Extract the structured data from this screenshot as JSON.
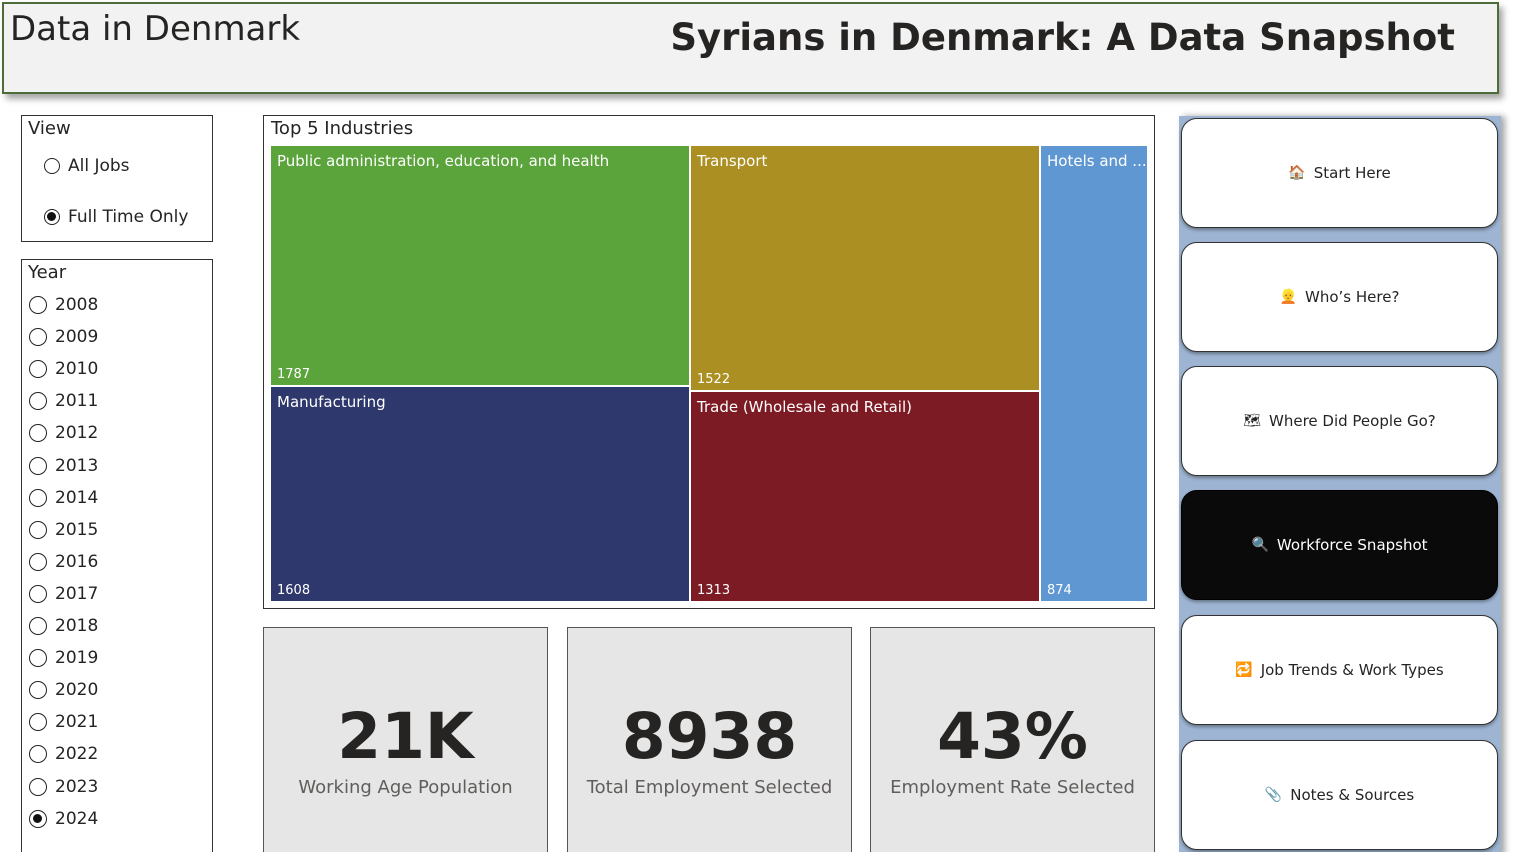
{
  "header": {
    "brand": "Data in Denmark",
    "title": "Syrians in Denmark: A Data Snapshot"
  },
  "view_slicer": {
    "title": "View",
    "options": [
      {
        "label": "All Jobs",
        "selected": false
      },
      {
        "label": "Full Time Only",
        "selected": true
      }
    ]
  },
  "year_slicer": {
    "title": "Year",
    "options": [
      {
        "label": "2008",
        "selected": false
      },
      {
        "label": "2009",
        "selected": false
      },
      {
        "label": "2010",
        "selected": false
      },
      {
        "label": "2011",
        "selected": false
      },
      {
        "label": "2012",
        "selected": false
      },
      {
        "label": "2013",
        "selected": false
      },
      {
        "label": "2014",
        "selected": false
      },
      {
        "label": "2015",
        "selected": false
      },
      {
        "label": "2016",
        "selected": false
      },
      {
        "label": "2017",
        "selected": false
      },
      {
        "label": "2018",
        "selected": false
      },
      {
        "label": "2019",
        "selected": false
      },
      {
        "label": "2020",
        "selected": false
      },
      {
        "label": "2021",
        "selected": false
      },
      {
        "label": "2022",
        "selected": false
      },
      {
        "label": "2023",
        "selected": false
      },
      {
        "label": "2024",
        "selected": true
      }
    ]
  },
  "treemap": {
    "title": "Top 5 Industries",
    "tiles": [
      {
        "label": "Public administration, education, and health",
        "value": "1787",
        "color": "#5ba33b"
      },
      {
        "label": "Manufacturing",
        "value": "1608",
        "color": "#2e386c"
      },
      {
        "label": "Transport",
        "value": "1522",
        "color": "#ac8f22"
      },
      {
        "label": "Trade (Wholesale and Retail)",
        "value": "1313",
        "color": "#7d1b24"
      },
      {
        "label": "Hotels and ...",
        "value": "874",
        "color": "#5e97d2"
      }
    ]
  },
  "cards": [
    {
      "value": "21K",
      "label": "Working Age Population"
    },
    {
      "value": "8938",
      "label": "Total Employment Selected"
    },
    {
      "value": "43%",
      "label": "Employment Rate Selected"
    }
  ],
  "nav": {
    "buttons": [
      {
        "icon": "house-icon",
        "glyph": "🏠",
        "label": "Start Here",
        "active": false
      },
      {
        "icon": "person-icon",
        "glyph": "👱",
        "label": "Who’s Here?",
        "active": false
      },
      {
        "icon": "map-icon",
        "glyph": "🗺",
        "label": "Where Did People Go?",
        "active": false
      },
      {
        "icon": "magnifier-icon",
        "glyph": "🔍",
        "label": "Workforce Snapshot",
        "active": true
      },
      {
        "icon": "repeat-icon",
        "glyph": "🔁",
        "label": "Job Trends & Work Types",
        "active": false
      },
      {
        "icon": "paperclip-icon",
        "glyph": "📎",
        "label": "Notes & Sources",
        "active": false
      }
    ]
  },
  "colors": {
    "header_border": "#4e6b3a",
    "nav_rail": "#9db4d2",
    "active_button": "#0a0a0a"
  }
}
